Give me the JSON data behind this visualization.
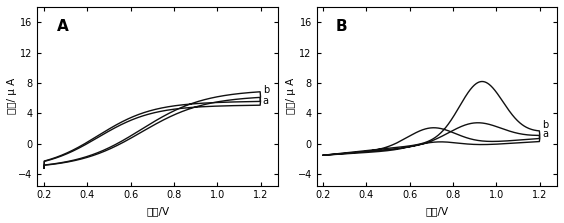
{
  "panel_A_label": "A",
  "panel_B_label": "B",
  "xlabel": "电势/V",
  "ylabel": "电流/ μ A",
  "xlim": [
    0.17,
    1.28
  ],
  "ylim": [
    -5.5,
    18
  ],
  "yticks": [
    -4,
    0,
    4,
    8,
    12,
    16
  ],
  "xticks": [
    0.2,
    0.4,
    0.6,
    0.8,
    1.0,
    1.2
  ],
  "line_color": "#111111",
  "label_a": "a",
  "label_b": "b",
  "bg_color": "#ffffff"
}
